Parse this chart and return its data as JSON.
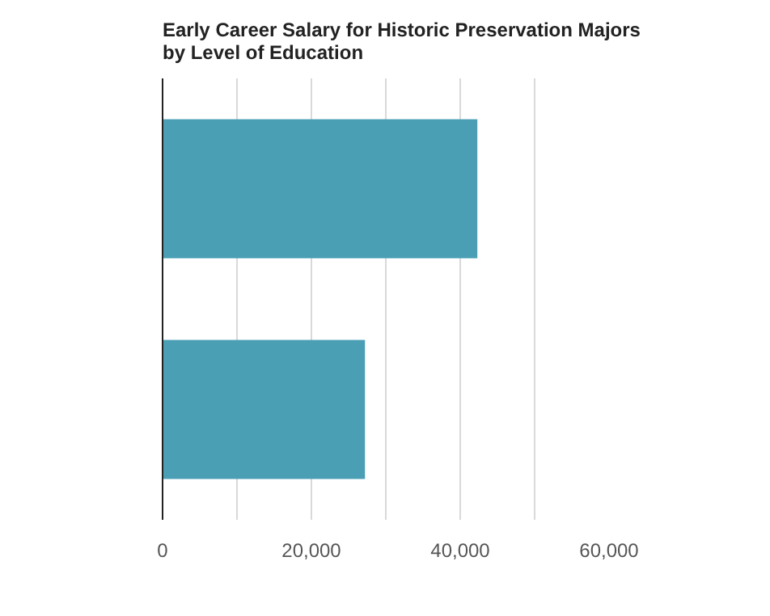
{
  "chart_data": {
    "type": "bar",
    "orientation": "horizontal",
    "title": "Early Career Salary for Historic Preservation Majors by Level of Education",
    "categories": [
      null,
      null
    ],
    "values": [
      42300,
      27200
    ],
    "color": "#4a9fb5",
    "xlim": [
      0,
      60000
    ],
    "xticks": [
      0,
      {
        "value": 10000,
        "label": null
      },
      {
        "value": 20000,
        "label": "20,000"
      },
      {
        "value": 30000,
        "label": null
      },
      {
        "value": 40000,
        "label": "40,000"
      },
      {
        "value": 50000,
        "label": null
      },
      {
        "value": 60000,
        "label": "60,000"
      }
    ],
    "grid": "x"
  }
}
